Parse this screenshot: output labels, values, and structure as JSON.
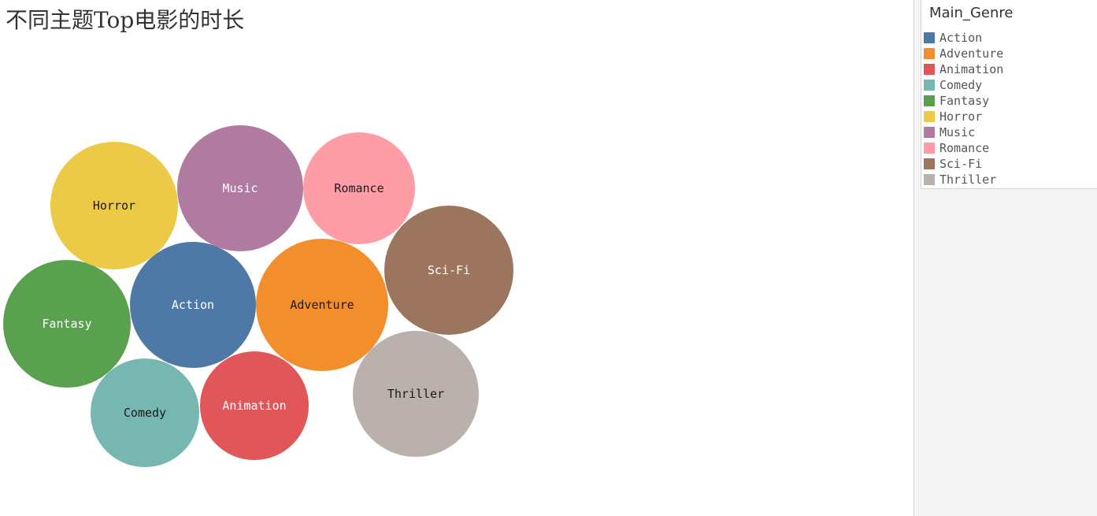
{
  "chart_data": {
    "type": "bubble",
    "title": "不同主题Top电影的时长",
    "legend": {
      "title": "Main_Genre",
      "position": "top-right"
    },
    "series": [
      {
        "name": "Action",
        "color": "#4e79a7",
        "label_color": "#ffffff"
      },
      {
        "name": "Adventure",
        "color": "#f28e2b",
        "label_color": "#1a1a1a"
      },
      {
        "name": "Animation",
        "color": "#e15759",
        "label_color": "#ffffff"
      },
      {
        "name": "Comedy",
        "color": "#76b7b2",
        "label_color": "#1a1a1a"
      },
      {
        "name": "Fantasy",
        "color": "#59a14f",
        "label_color": "#ffffff"
      },
      {
        "name": "Horror",
        "color": "#edc948",
        "label_color": "#1a1a1a"
      },
      {
        "name": "Music",
        "color": "#b07aa1",
        "label_color": "#ffffff"
      },
      {
        "name": "Romance",
        "color": "#ff9da7",
        "label_color": "#1a1a1a"
      },
      {
        "name": "Sci-Fi",
        "color": "#9c755f",
        "label_color": "#ffffff"
      },
      {
        "name": "Thriller",
        "color": "#bab0ac",
        "label_color": "#1a1a1a"
      }
    ]
  }
}
